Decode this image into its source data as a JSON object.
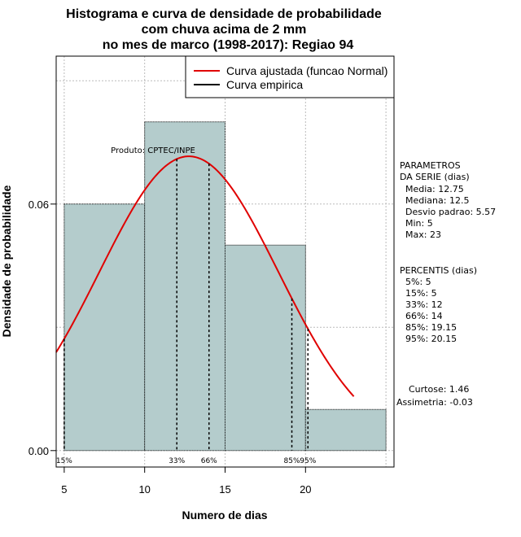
{
  "title": [
    "Histograma e curva de densidade de probabilidade",
    "com chuva acima de 2 mm",
    "no mes de marco (1998-2017): Regiao 94"
  ],
  "colors": {
    "bar_fill": "#b4cccc",
    "fit_curve": "#e00000",
    "grid": "#bbbbbb"
  },
  "producer": "Produto: CPTEC/INPE",
  "legend": {
    "placement": "top-right",
    "items": [
      {
        "label": "Curva ajustada (funcao Normal)",
        "color": "#e00000"
      },
      {
        "label": "Curva empirica",
        "color": "#000000"
      }
    ]
  },
  "parameters": {
    "heading": [
      "PARAMETROS",
      "DA SERIE (dias)"
    ],
    "lines": [
      "Media: 12.75",
      "Mediana: 12.5",
      "Desvio padrao: 5.57",
      "Min: 5",
      "Max: 23"
    ]
  },
  "percentiles": {
    "heading": "PERCENTIS (dias)",
    "lines": [
      "5%: 5",
      "15%: 5",
      "33%: 12",
      "66%: 14",
      "85%: 19.15",
      "95%: 20.15"
    ]
  },
  "shape": {
    "lines": [
      "Curtose: 1.46",
      "Assimetria: -0.03"
    ]
  },
  "chart_data": {
    "type": "bar",
    "xlabel": "Numero de dias",
    "ylabel": "Densidade de probabilidade",
    "xlim": [
      4.5,
      25.5
    ],
    "ylim": [
      -0.004,
      0.096
    ],
    "x_ticks": [
      5,
      10,
      15,
      20
    ],
    "y_ticks": [
      0.0,
      0.06
    ],
    "y_tick_labels": [
      "0.00",
      "0.06"
    ],
    "grid": true,
    "bins": [
      {
        "x0": 5,
        "x1": 10,
        "density": 0.06
      },
      {
        "x0": 10,
        "x1": 15,
        "density": 0.08
      },
      {
        "x0": 15,
        "x1": 20,
        "density": 0.05
      },
      {
        "x0": 20,
        "x1": 25,
        "density": 0.01
      }
    ],
    "normal_fit": {
      "mean": 12.75,
      "sd": 5.57,
      "x_range": [
        4.5,
        23
      ]
    },
    "percentile_markers": [
      {
        "label": "15%",
        "x": 5
      },
      {
        "label": "33%",
        "x": 12
      },
      {
        "label": "66%",
        "x": 14
      },
      {
        "label": "85%",
        "x": 19.15
      },
      {
        "label": "95%",
        "x": 20.15
      }
    ]
  }
}
